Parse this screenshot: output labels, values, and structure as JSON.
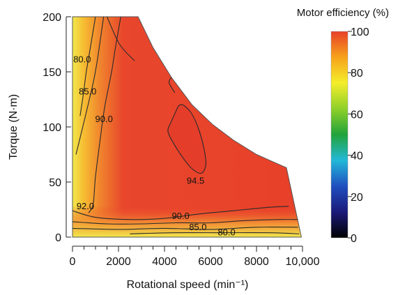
{
  "chart_data": {
    "type": "heatmap",
    "title": "",
    "xlabel": "Rotational speed (min⁻¹)",
    "ylabel": "Torque (N·m)",
    "xlim": [
      0,
      10000
    ],
    "ylim": [
      0,
      200
    ],
    "x_ticks": [
      0,
      2000,
      4000,
      6000,
      8000,
      10000
    ],
    "x_tick_labels": [
      "0",
      "2000",
      "4000",
      "6000",
      "8000",
      "10,000"
    ],
    "y_ticks": [
      0,
      50,
      100,
      150,
      200
    ],
    "y_tick_labels": [
      "0",
      "50",
      "100",
      "150",
      "200"
    ],
    "x_minor_step": 500,
    "colorbar": {
      "title": "Motor efficiency (%)",
      "range": [
        0,
        100
      ],
      "ticks": [
        0,
        20,
        40,
        60,
        80,
        100
      ],
      "tick_labels": [
        "0",
        "20",
        "40",
        "60",
        "80",
        "100"
      ],
      "colors": [
        "#000000",
        "#1a1a7a",
        "#1f4fbf",
        "#22b8d8",
        "#21a33a",
        "#8fd02a",
        "#f4ee2a",
        "#f7a21a",
        "#e8402a"
      ]
    },
    "operating_envelope": [
      [
        0,
        0
      ],
      [
        0,
        200
      ],
      [
        2850,
        200
      ],
      [
        3500,
        172
      ],
      [
        4300,
        145
      ],
      [
        5200,
        120
      ],
      [
        6100,
        102
      ],
      [
        7000,
        88
      ],
      [
        8000,
        75
      ],
      [
        9300,
        63
      ],
      [
        9950,
        0
      ]
    ],
    "efficiency_regions": [
      {
        "efficiency": 94.5,
        "boundary": [
          [
            4600,
            119
          ],
          [
            4300,
            105
          ],
          [
            4150,
            96
          ],
          [
            4400,
            85
          ],
          [
            4800,
            72
          ],
          [
            5200,
            62
          ],
          [
            5600,
            58
          ],
          [
            5800,
            66
          ],
          [
            5700,
            82
          ],
          [
            5450,
            100
          ],
          [
            5150,
            113
          ],
          [
            4800,
            120
          ]
        ]
      }
    ],
    "contours": [
      {
        "level": 80.0,
        "label": "80.0",
        "points": [
          [
            1000,
            200
          ],
          [
            760,
            170
          ],
          [
            600,
            150
          ],
          [
            460,
            128
          ],
          [
            330,
            110
          ]
        ],
        "label_at": [
          420,
          161
        ]
      },
      {
        "level": 85.0,
        "label": "85.0",
        "points": [
          [
            1350,
            200
          ],
          [
            1150,
            170
          ],
          [
            950,
            145
          ],
          [
            700,
            122
          ],
          [
            400,
            96
          ],
          [
            150,
            75
          ]
        ],
        "label_at": [
          660,
          132
        ]
      },
      {
        "level": 90.0,
        "label": "90.0",
        "points": [
          [
            2100,
            200
          ],
          [
            1850,
            170
          ],
          [
            1700,
            150
          ],
          [
            1400,
            118
          ],
          [
            1200,
            88
          ],
          [
            1000,
            55
          ],
          [
            900,
            30
          ],
          [
            700,
            22
          ]
        ],
        "label_at": [
          1370,
          107
        ]
      },
      {
        "level": 94.5,
        "label": "94.5",
        "points": [
          [
            4600,
            119
          ],
          [
            4300,
            105
          ],
          [
            4150,
            96
          ],
          [
            4400,
            85
          ],
          [
            4800,
            72
          ],
          [
            5200,
            62
          ],
          [
            5600,
            58
          ],
          [
            5800,
            66
          ],
          [
            5700,
            82
          ],
          [
            5450,
            100
          ],
          [
            5150,
            113
          ],
          [
            4800,
            120
          ],
          [
            4600,
            119
          ]
        ],
        "label_at": [
          5350,
          51
        ]
      },
      {
        "level": 92.0,
        "label": "92.0",
        "points": [
          [
            0,
            24
          ],
          [
            1000,
            18
          ],
          [
            2500,
            16
          ],
          [
            4000,
            17
          ],
          [
            5500,
            21
          ],
          [
            7000,
            24
          ],
          [
            8500,
            27
          ],
          [
            9400,
            28
          ]
        ],
        "label_at": [
          560,
          28
        ]
      },
      {
        "level": 90.0,
        "label": "90.0",
        "points": [
          [
            0,
            14
          ],
          [
            1500,
            12
          ],
          [
            3000,
            12
          ],
          [
            4500,
            13
          ],
          [
            6000,
            13
          ],
          [
            7500,
            15
          ],
          [
            9000,
            16
          ],
          [
            9800,
            16
          ]
        ],
        "label_at": [
          4700,
          19
        ]
      },
      {
        "level": 85.0,
        "label": "85.0",
        "points": [
          [
            0,
            8
          ],
          [
            2000,
            7
          ],
          [
            4000,
            8
          ],
          [
            6000,
            7
          ],
          [
            8000,
            9
          ],
          [
            9800,
            9
          ]
        ],
        "label_at": [
          5450,
          9
        ]
      },
      {
        "level": 80.0,
        "label": "80.0",
        "points": [
          [
            2500,
            3
          ],
          [
            4500,
            4
          ],
          [
            6500,
            4
          ],
          [
            8500,
            4
          ],
          [
            9850,
            3
          ]
        ],
        "label_at": [
          6700,
          4
        ]
      },
      {
        "level": 92.0,
        "label": "",
        "points": [
          [
            1500,
            200
          ],
          [
            2050,
            175
          ],
          [
            2700,
            160
          ]
        ]
      },
      {
        "level": 92.0,
        "label": "",
        "points": [
          [
            4300,
            145
          ],
          [
            4200,
            140
          ],
          [
            4450,
            131
          ]
        ]
      }
    ]
  }
}
